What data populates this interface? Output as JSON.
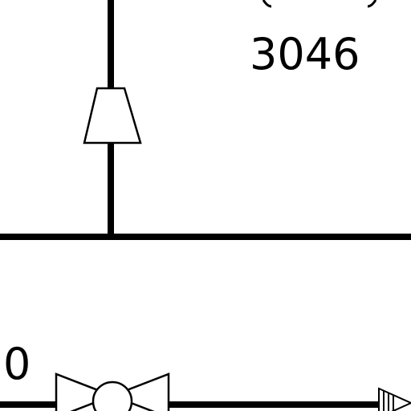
{
  "diagram": {
    "instrument_tag": "3046",
    "partial_tag": "0"
  }
}
